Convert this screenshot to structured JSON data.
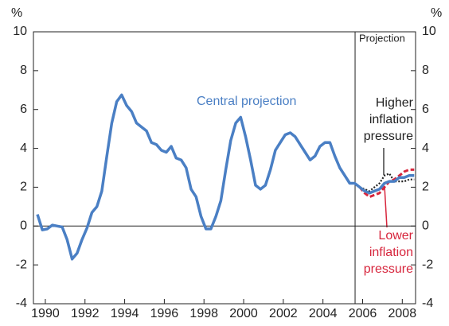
{
  "chart_data": {
    "type": "line",
    "y_unit_left": "%",
    "y_unit_right": "%",
    "xlim": [
      1989.4,
      2008.67
    ],
    "ylim": [
      -4,
      10
    ],
    "yticks": [
      -4,
      -2,
      0,
      2,
      4,
      6,
      8,
      10
    ],
    "xticks": [
      1990,
      1992,
      1994,
      1996,
      1998,
      2000,
      2002,
      2004,
      2006,
      2008
    ],
    "projection_line": 2005.62,
    "projection_label": "Projection",
    "annotations": [
      {
        "lines": [
          "Central projection"
        ],
        "color": "#4a7fc4"
      },
      {
        "lines": [
          "Higher",
          "inflation",
          "pressure"
        ],
        "color": "#222222"
      },
      {
        "lines": [
          "Lower",
          "inflation",
          "pressure"
        ],
        "color": "#d7263d"
      }
    ],
    "series": [
      {
        "name": "Central projection",
        "color": "#4a7fc4",
        "style": "solid",
        "x": [
          1989.6,
          1989.85,
          1990.1,
          1990.35,
          1990.6,
          1990.85,
          1991.1,
          1991.35,
          1991.6,
          1991.85,
          1992.1,
          1992.35,
          1992.6,
          1992.85,
          1993.1,
          1993.35,
          1993.6,
          1993.85,
          1994.1,
          1994.35,
          1994.6,
          1994.85,
          1995.1,
          1995.35,
          1995.6,
          1995.85,
          1996.1,
          1996.35,
          1996.6,
          1996.85,
          1997.1,
          1997.35,
          1997.6,
          1997.85,
          1998.1,
          1998.35,
          1998.6,
          1998.85,
          1999.1,
          1999.35,
          1999.6,
          1999.85,
          2000.1,
          2000.35,
          2000.6,
          2000.85,
          2001.1,
          2001.35,
          2001.6,
          2001.85,
          2002.1,
          2002.35,
          2002.6,
          2002.85,
          2003.1,
          2003.35,
          2003.6,
          2003.85,
          2004.1,
          2004.35,
          2004.6,
          2004.85,
          2005.1,
          2005.35,
          2005.6,
          2005.85,
          2006.1,
          2006.35,
          2006.6,
          2006.85,
          2007.1,
          2007.35,
          2007.6,
          2007.85,
          2008.1,
          2008.35,
          2008.6
        ],
        "values": [
          0.6,
          -0.2,
          -0.15,
          0.05,
          0,
          -0.05,
          -0.7,
          -1.7,
          -1.4,
          -0.7,
          -0.1,
          0.7,
          1.0,
          1.8,
          3.6,
          5.3,
          6.4,
          6.75,
          6.2,
          5.9,
          5.3,
          5.1,
          4.9,
          4.3,
          4.2,
          3.9,
          3.8,
          4.1,
          3.5,
          3.4,
          3.0,
          1.9,
          1.5,
          0.5,
          -0.15,
          -0.15,
          0.5,
          1.3,
          2.9,
          4.4,
          5.3,
          5.6,
          4.6,
          3.4,
          2.1,
          1.9,
          2.1,
          2.9,
          3.9,
          4.3,
          4.7,
          4.8,
          4.6,
          4.2,
          3.8,
          3.4,
          3.6,
          4.1,
          4.3,
          4.3,
          3.6,
          3.0,
          2.6,
          2.2,
          2.2,
          2.0,
          1.8,
          1.7,
          1.8,
          1.9,
          2.2,
          2.3,
          2.3,
          2.5,
          2.5,
          2.6,
          2.6
        ]
      },
      {
        "name": "Higher inflation pressure",
        "color": "#222222",
        "style": "dotted",
        "x": [
          2005.85,
          2006.1,
          2006.35,
          2006.6,
          2006.85,
          2007.1,
          2007.35,
          2007.6,
          2007.85,
          2008.1,
          2008.35,
          2008.6
        ],
        "values": [
          2.0,
          1.9,
          1.8,
          2.0,
          2.2,
          2.6,
          2.7,
          2.3,
          2.3,
          2.3,
          2.4,
          2.4
        ]
      },
      {
        "name": "Lower inflation pressure",
        "color": "#d7263d",
        "style": "dashed",
        "x": [
          2005.85,
          2006.1,
          2006.35,
          2006.6,
          2006.85,
          2007.1,
          2007.35,
          2007.6,
          2007.85,
          2008.1,
          2008.35,
          2008.6
        ],
        "values": [
          2.0,
          1.7,
          1.5,
          1.6,
          1.7,
          2.0,
          2.3,
          2.4,
          2.6,
          2.8,
          2.9,
          2.9
        ]
      }
    ]
  }
}
